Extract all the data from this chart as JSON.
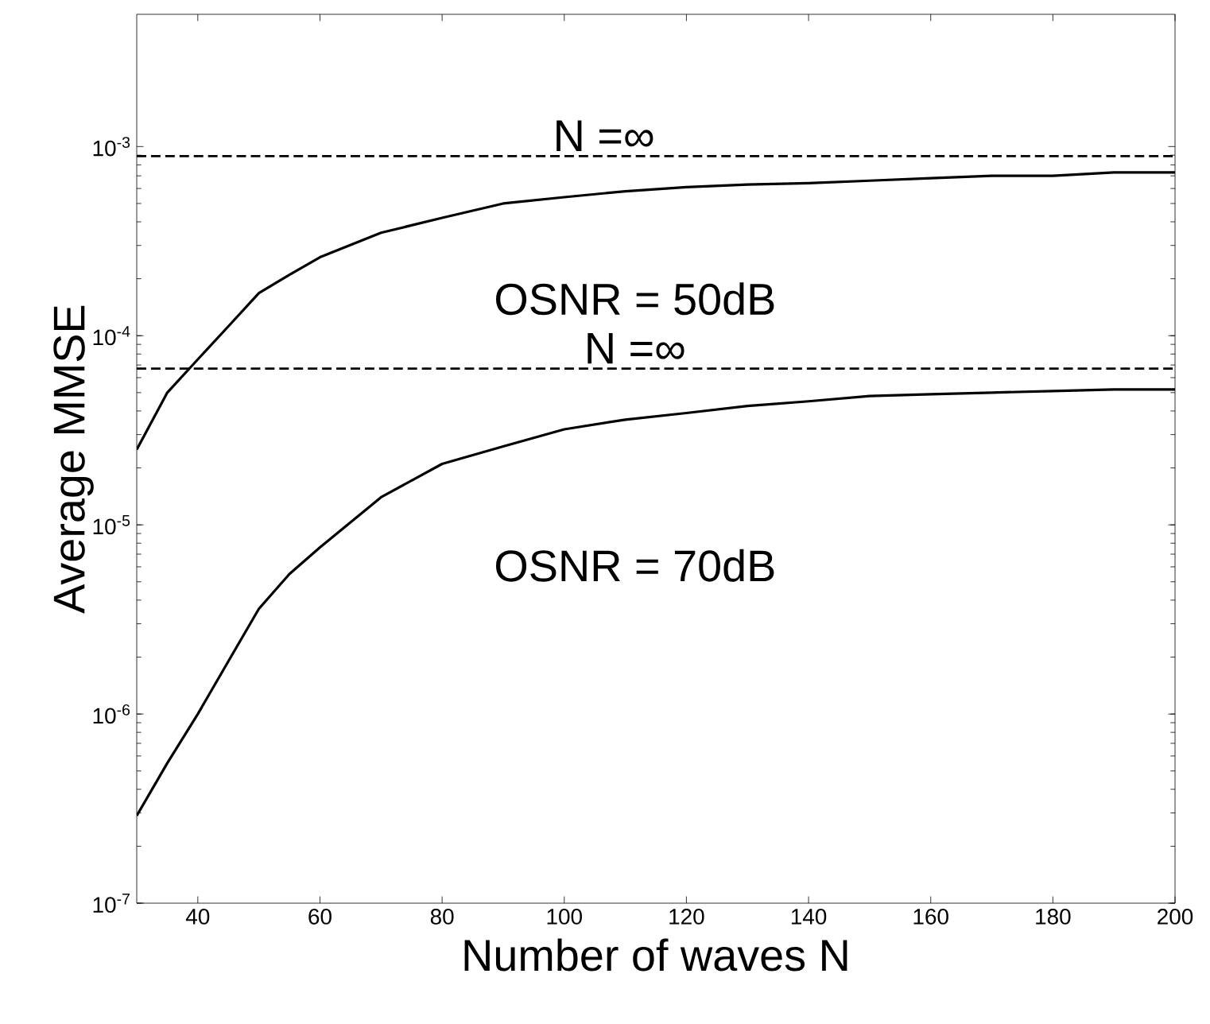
{
  "chart_data": {
    "type": "line",
    "xlabel": "Number of waves N",
    "ylabel": "Average MMSE",
    "log": "y",
    "grid": false,
    "marker": "none",
    "line_style": "solid",
    "xlim": [
      30,
      200
    ],
    "xticks": [
      40,
      60,
      80,
      100,
      120,
      140,
      160,
      180,
      200
    ],
    "ylim": [
      1e-07,
      0.005
    ],
    "yticks": [
      {
        "value": 1e-07,
        "label": "10$^{-7}$"
      },
      {
        "value": 1e-06,
        "label": "10$^{-6}$"
      },
      {
        "value": 1e-05,
        "label": "10$^{-5}$"
      },
      {
        "value": 0.0001,
        "label": "10$^{-4}$"
      },
      {
        "value": 0.001,
        "label": "10$^{-3}$"
      }
    ],
    "x": [
      30,
      35,
      40,
      45,
      50,
      55,
      60,
      70,
      80,
      90,
      100,
      110,
      120,
      130,
      140,
      150,
      160,
      170,
      180,
      190,
      200
    ],
    "series": [
      {
        "color": "#000000",
        "values": [
          2.5e-05,
          5e-05,
          7.5e-05,
          0.000112,
          0.000168,
          0.00021,
          0.00026,
          0.00035,
          0.00042,
          0.0005,
          0.00054,
          0.00058,
          0.00061,
          0.00063,
          0.00064,
          0.00066,
          0.00068,
          0.0007,
          0.0007,
          0.00073,
          0.00073
        ]
      },
      {
        "color": "#000000",
        "values": [
          2.9e-07,
          5.5e-07,
          1e-06,
          1.9e-06,
          3.6e-06,
          5.5e-06,
          7.6e-06,
          1.4e-05,
          2.1e-05,
          2.6e-05,
          3.2e-05,
          3.6e-05,
          3.9e-05,
          4.25e-05,
          4.5e-05,
          4.8e-05,
          4.9e-05,
          5e-05,
          5.1e-05,
          5.2e-05,
          5.2e-05
        ]
      }
    ],
    "ref_lines": [
      {
        "axis": "y",
        "value": 0.00089,
        "label": "N =∞",
        "color": "#000000",
        "line_style": "dashed"
      },
      {
        "axis": "y",
        "value": 6.7e-05,
        "label": "N =∞",
        "color": "#000000",
        "line_style": "dashed"
      }
    ],
    "annotations": [
      "OSNR = 50dB",
      "OSNR = 70dB"
    ]
  }
}
